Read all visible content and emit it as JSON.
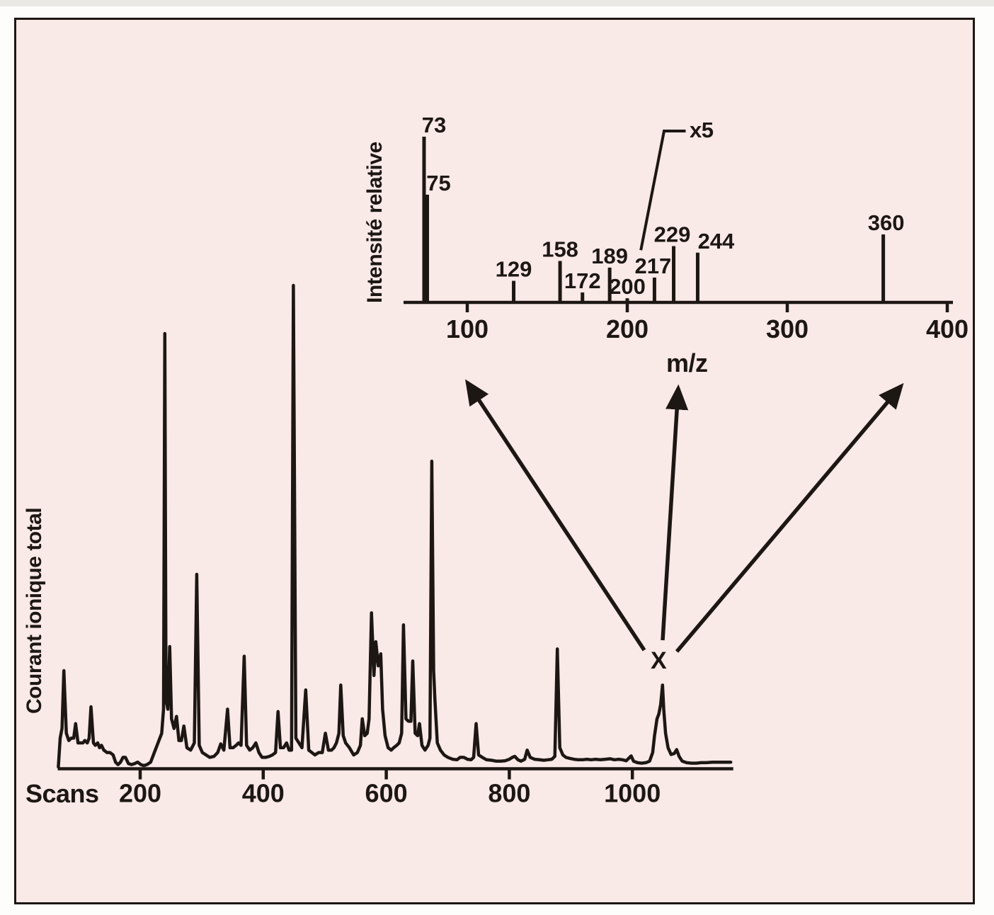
{
  "figure": {
    "background_color": "#f9e9e7",
    "ink_color": "#1d1713",
    "outer_background": "#fdfdfb"
  },
  "chart_data": [
    {
      "type": "bar",
      "name": "mass-spectrum-inset",
      "title": "",
      "ylabel": "Intensité relative",
      "xlabel": "m/z",
      "xlim": [
        60,
        405
      ],
      "ylim": [
        0,
        110
      ],
      "xticks": [
        100,
        200,
        300,
        400
      ],
      "grid": false,
      "legend": "none",
      "peaks": [
        {
          "mz": 73,
          "intensity": 100,
          "label": "73"
        },
        {
          "mz": 75,
          "intensity": 65,
          "label": "75"
        },
        {
          "mz": 129,
          "intensity": 13,
          "label": "129"
        },
        {
          "mz": 158,
          "intensity": 25,
          "label": "158"
        },
        {
          "mz": 172,
          "intensity": 6,
          "label": "172"
        },
        {
          "mz": 189,
          "intensity": 21,
          "label": "189"
        },
        {
          "mz": 200,
          "intensity": 2.5,
          "label": "200"
        },
        {
          "mz": 217,
          "intensity": 15,
          "label": "217"
        },
        {
          "mz": 229,
          "intensity": 34,
          "label": "229"
        },
        {
          "mz": 244,
          "intensity": 30,
          "label": "244"
        },
        {
          "mz": 360,
          "intensity": 41,
          "label": "360"
        }
      ],
      "scale_annotation": {
        "text": "x5",
        "pointer_path_mz_intensity": [
          [
            208.5,
            31.5
          ],
          [
            223,
            103.4
          ],
          [
            236.5,
            103.4
          ]
        ]
      }
    },
    {
      "type": "line",
      "name": "tic-chromatogram",
      "title": "",
      "ylabel": "Courant ionique total",
      "xlabel": "Scans",
      "xlim": [
        60,
        1165
      ],
      "ylim": [
        0,
        105
      ],
      "xticks": [
        200,
        400,
        600,
        800,
        1000
      ],
      "grid": false,
      "labeled_peak": {
        "label": "X",
        "scan": 1049,
        "intensity": 17,
        "arrows_to_spectrum": 3
      },
      "points": [
        [
          67,
          0
        ],
        [
          70,
          6
        ],
        [
          73,
          8
        ],
        [
          76,
          20
        ],
        [
          80,
          7
        ],
        [
          84,
          5.5
        ],
        [
          88,
          6
        ],
        [
          92,
          6
        ],
        [
          95,
          9
        ],
        [
          99,
          5
        ],
        [
          103,
          5
        ],
        [
          107,
          5
        ],
        [
          110,
          5.5
        ],
        [
          114,
          5
        ],
        [
          117,
          6
        ],
        [
          120,
          12.5
        ],
        [
          124,
          5
        ],
        [
          127,
          4.5
        ],
        [
          131,
          5
        ],
        [
          134,
          4
        ],
        [
          137,
          4.5
        ],
        [
          141,
          3.5
        ],
        [
          146,
          3
        ],
        [
          151,
          3
        ],
        [
          156,
          2.5
        ],
        [
          160,
          1
        ],
        [
          164,
          0.5
        ],
        [
          168,
          1
        ],
        [
          172,
          2
        ],
        [
          176,
          2
        ],
        [
          181,
          0.7
        ],
        [
          186,
          0.5
        ],
        [
          191,
          0.7
        ],
        [
          196,
          1
        ],
        [
          201,
          0.5
        ],
        [
          206,
          0.3
        ],
        [
          211,
          0.5
        ],
        [
          217,
          1
        ],
        [
          223,
          3
        ],
        [
          229,
          5
        ],
        [
          235,
          7
        ],
        [
          238,
          12
        ],
        [
          240,
          90
        ],
        [
          242,
          14
        ],
        [
          245,
          12
        ],
        [
          248,
          25
        ],
        [
          251,
          10
        ],
        [
          255,
          8
        ],
        [
          259,
          10.5
        ],
        [
          263,
          5.5
        ],
        [
          267,
          5.5
        ],
        [
          271,
          8.5
        ],
        [
          276,
          4
        ],
        [
          282,
          3.5
        ],
        [
          288,
          5
        ],
        [
          292,
          40
        ],
        [
          296,
          4.5
        ],
        [
          301,
          3
        ],
        [
          307,
          2.5
        ],
        [
          313,
          2
        ],
        [
          320,
          2.2
        ],
        [
          326,
          3
        ],
        [
          331,
          4.8
        ],
        [
          336,
          3.5
        ],
        [
          342,
          12
        ],
        [
          346,
          4
        ],
        [
          351,
          4
        ],
        [
          356,
          4.5
        ],
        [
          360,
          5
        ],
        [
          364,
          4.5
        ],
        [
          369,
          23
        ],
        [
          373,
          4.5
        ],
        [
          378,
          3.5
        ],
        [
          383,
          4
        ],
        [
          388,
          5
        ],
        [
          393,
          3
        ],
        [
          398,
          2
        ],
        [
          404,
          2
        ],
        [
          410,
          2.2
        ],
        [
          415,
          2.5
        ],
        [
          420,
          3
        ],
        [
          424,
          11.5
        ],
        [
          428,
          4
        ],
        [
          433,
          4
        ],
        [
          438,
          5
        ],
        [
          442,
          3.5
        ],
        [
          446,
          3.5
        ],
        [
          449,
          100
        ],
        [
          453,
          6
        ],
        [
          458,
          5
        ],
        [
          463,
          4
        ],
        [
          469,
          16
        ],
        [
          474,
          3.5
        ],
        [
          479,
          3
        ],
        [
          484,
          2.5
        ],
        [
          490,
          3
        ],
        [
          496,
          3
        ],
        [
          501,
          7
        ],
        [
          506,
          3.5
        ],
        [
          511,
          3.5
        ],
        [
          515,
          4
        ],
        [
          519,
          5
        ],
        [
          523,
          7
        ],
        [
          526,
          17
        ],
        [
          530,
          6.5
        ],
        [
          534,
          5
        ],
        [
          540,
          4
        ],
        [
          547,
          2.5
        ],
        [
          553,
          3
        ],
        [
          558,
          4.5
        ],
        [
          561,
          10
        ],
        [
          565,
          6.5
        ],
        [
          569,
          7
        ],
        [
          572,
          10
        ],
        [
          576,
          32
        ],
        [
          580,
          19
        ],
        [
          583,
          26
        ],
        [
          587,
          21
        ],
        [
          591,
          23.5
        ],
        [
          594,
          12
        ],
        [
          598,
          6.5
        ],
        [
          603,
          4
        ],
        [
          608,
          3.5
        ],
        [
          612,
          4
        ],
        [
          617,
          4.5
        ],
        [
          621,
          5
        ],
        [
          625,
          7
        ],
        [
          628,
          29.5
        ],
        [
          632,
          10
        ],
        [
          636,
          9.5
        ],
        [
          640,
          9.5
        ],
        [
          643,
          22
        ],
        [
          647,
          7
        ],
        [
          651,
          6.5
        ],
        [
          654,
          9
        ],
        [
          658,
          4.5
        ],
        [
          663,
          3.5
        ],
        [
          668,
          4.5
        ],
        [
          671,
          6
        ],
        [
          674,
          63.5
        ],
        [
          677,
          20
        ],
        [
          679,
          14
        ],
        [
          683,
          5
        ],
        [
          688,
          3.5
        ],
        [
          694,
          2.5
        ],
        [
          700,
          2
        ],
        [
          708,
          1.6
        ],
        [
          715,
          1.5
        ],
        [
          720,
          2
        ],
        [
          726,
          2
        ],
        [
          732,
          1.6
        ],
        [
          738,
          1.5
        ],
        [
          742,
          2
        ],
        [
          746,
          9
        ],
        [
          750,
          2.5
        ],
        [
          756,
          2
        ],
        [
          763,
          1.5
        ],
        [
          771,
          1.4
        ],
        [
          779,
          1.2
        ],
        [
          786,
          1.2
        ],
        [
          793,
          1.3
        ],
        [
          800,
          1.6
        ],
        [
          805,
          2
        ],
        [
          809,
          2.2
        ],
        [
          814,
          1.5
        ],
        [
          819,
          1.2
        ],
        [
          825,
          1.6
        ],
        [
          829,
          3.5
        ],
        [
          834,
          2
        ],
        [
          841,
          1.6
        ],
        [
          849,
          1.5
        ],
        [
          856,
          1.4
        ],
        [
          863,
          1.5
        ],
        [
          869,
          1.6
        ],
        [
          874,
          2.2
        ],
        [
          878,
          24.5
        ],
        [
          882,
          4
        ],
        [
          887,
          2.5
        ],
        [
          892,
          2
        ],
        [
          898,
          1.8
        ],
        [
          905,
          1.6
        ],
        [
          912,
          1.5
        ],
        [
          919,
          1.5
        ],
        [
          926,
          1.6
        ],
        [
          933,
          1.5
        ],
        [
          940,
          1.6
        ],
        [
          948,
          1.5
        ],
        [
          956,
          1.6
        ],
        [
          964,
          1.7
        ],
        [
          971,
          1.5
        ],
        [
          978,
          1.6
        ],
        [
          984,
          1.5
        ],
        [
          990,
          1.3
        ],
        [
          998,
          2.3
        ],
        [
          1002,
          1.2
        ],
        [
          1008,
          0.9
        ],
        [
          1015,
          0.8
        ],
        [
          1022,
          0.9
        ],
        [
          1028,
          1.2
        ],
        [
          1033,
          3
        ],
        [
          1036,
          6.5
        ],
        [
          1040,
          10
        ],
        [
          1043,
          11
        ],
        [
          1046,
          13
        ],
        [
          1049,
          17
        ],
        [
          1051,
          12
        ],
        [
          1054,
          7
        ],
        [
          1058,
          4
        ],
        [
          1063,
          2.6
        ],
        [
          1068,
          2.8
        ],
        [
          1072,
          3.6
        ],
        [
          1076,
          2.2
        ],
        [
          1081,
          1.2
        ],
        [
          1088,
          0.9
        ],
        [
          1096,
          0.8
        ],
        [
          1104,
          0.8
        ],
        [
          1112,
          0.9
        ],
        [
          1120,
          0.9
        ],
        [
          1130,
          1
        ],
        [
          1140,
          1
        ],
        [
          1150,
          1
        ],
        [
          1160,
          1
        ]
      ]
    }
  ]
}
